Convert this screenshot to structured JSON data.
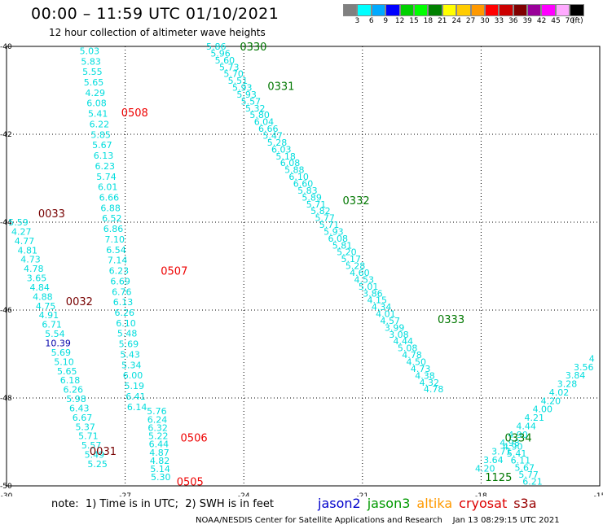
{
  "header": {
    "title": "00:00 – 11:59 UTC 01/10/2021",
    "subtitle": "12 hour collection of altimeter wave heights"
  },
  "colorbar": {
    "labels": [
      "3",
      "6",
      "9",
      "12",
      "15",
      "18",
      "21",
      "24",
      "27",
      "30",
      "33",
      "36",
      "39",
      "42",
      "45",
      "70",
      "(ft)"
    ],
    "colors": [
      "#808080",
      "#00ffff",
      "#00aaff",
      "#0000ff",
      "#00d000",
      "#00ff00",
      "#008000",
      "#ffff00",
      "#ffcc00",
      "#ff9900",
      "#ff0000",
      "#cc0000",
      "#800000",
      "#990099",
      "#ff00ff",
      "#ffaaff",
      "#000000"
    ]
  },
  "footer": {
    "note": "note:  1) Time is in UTC;  2) SWH is in feet",
    "credit": "NOAA/NESDIS Center for Satellite Applications and Research    Jan 13 08:29:15 UTC 2021",
    "legend": [
      {
        "name": "jason2",
        "color": "#0000cc"
      },
      {
        "name": "jason3",
        "color": "#009900"
      },
      {
        "name": "altika",
        "color": "#ff9900"
      },
      {
        "name": "cryosat",
        "color": "#dd0000"
      },
      {
        "name": "s3a",
        "color": "#990000"
      }
    ]
  },
  "chart_data": {
    "type": "scatter",
    "xlim": [
      -30,
      -15
    ],
    "ylim": [
      -50,
      -40
    ],
    "x_ticks": [
      "-30",
      "-27",
      "-24",
      "-21",
      "-18",
      "-15"
    ],
    "y_ticks": [
      "-40",
      "-42",
      "-44",
      "-46",
      "-48",
      "-50"
    ],
    "grid": true,
    "point_color": "#00dddd",
    "tracks": [
      {
        "id": "pass-0033-0032-0031",
        "x0": -29.7,
        "y0": -44.0,
        "x1": -27.7,
        "y1": -49.5,
        "values": [
          "5.59",
          "4.27",
          "4.77",
          "4.81",
          "4.73",
          "4.78",
          "3.65",
          "4.84",
          "4.88",
          "4.75",
          "4.91",
          "6.71",
          "5.54",
          "10.39",
          "5.69",
          "5.10",
          "5.65",
          "6.18",
          "6.26",
          "5.98",
          "6.43",
          "6.67",
          "5.37",
          "5.71",
          "5.57",
          "5.49",
          "5.25"
        ],
        "colors": {
          "13": "#0000aa"
        }
      },
      {
        "id": "pass-0508-0507",
        "x0": -27.9,
        "y0": -40.1,
        "x1": -26.7,
        "y1": -48.2,
        "values": [
          "5.03",
          "5.83",
          "5.55",
          "5.65",
          "4.29",
          "6.08",
          "5.41",
          "6.22",
          "5.85",
          "5.67",
          "6.13",
          "6.23",
          "5.74",
          "6.01",
          "6.66",
          "6.88",
          "6.52",
          "6.86",
          "7.10",
          "6.54",
          "7.14",
          "6.23",
          "6.69",
          "6.76",
          "6.13",
          "6.26",
          "6.10",
          "5.48",
          "5.69",
          "5.43",
          "5.34",
          "6.00",
          "5.19",
          "6.41",
          "6.14"
        ],
        "colors": {}
      },
      {
        "id": "pass-0506-0505",
        "x0": -26.2,
        "y0": -48.3,
        "x1": -26.1,
        "y1": -49.8,
        "values": [
          "5.76",
          "6.24",
          "6.32",
          "5.22",
          "6.44",
          "4.87",
          "4.82",
          "5.14",
          "5.30"
        ],
        "colors": {}
      },
      {
        "id": "pass-0330-0333",
        "x0": -24.7,
        "y0": -40.0,
        "x1": -19.2,
        "y1": -47.8,
        "values": [
          "5.86",
          "5.96",
          "5.60",
          "5.73",
          "5.70",
          "5.51",
          "5.93",
          "5.93",
          "5.57",
          "5.32",
          "5.80",
          "6.04",
          "6.66",
          "5.47",
          "5.28",
          "6.03",
          "5.18",
          "6.08",
          "5.88",
          "6.10",
          "6.60",
          "5.83",
          "5.89",
          "5.71",
          "5.82",
          "5.77",
          "5.71",
          "5.93",
          "6.08",
          "5.81",
          "5.20",
          "5.17",
          "5.28",
          "4.60",
          "4.53",
          "5.01",
          "3.86",
          "4.15",
          "4.34",
          "4.01",
          "4.57",
          "3.99",
          "3.08",
          "4.44",
          "5.08",
          "4.78",
          "4.50",
          "4.73",
          "4.38",
          "4.32",
          "4.78"
        ],
        "colors": {}
      },
      {
        "id": "pass-0334-1125",
        "x0": -17.2,
        "y0": -49.1,
        "x1": -16.7,
        "y1": -49.9,
        "values": [
          "4.90",
          "5.41",
          "6.11",
          "5.67",
          "5.77",
          "6.21"
        ],
        "colors": {}
      },
      {
        "id": "pass-1125-rise",
        "x0": -17.9,
        "y0": -49.6,
        "x1": -15.2,
        "y1": -47.1,
        "values": [
          "4.20",
          "3.64",
          "3.71",
          "4.98",
          "4.90",
          "4.44",
          "4.21",
          "4.00",
          "4.20",
          "4.02",
          "3.28",
          "3.84",
          "3.56",
          "4"
        ],
        "colors": {}
      }
    ],
    "annotations": [
      {
        "text": "0330",
        "x": -24.1,
        "y": -40.0,
        "color": "#007700"
      },
      {
        "text": "0331",
        "x": -23.4,
        "y": -40.9,
        "color": "#007700"
      },
      {
        "text": "0332",
        "x": -21.5,
        "y": -43.5,
        "color": "#007700"
      },
      {
        "text": "0333",
        "x": -19.1,
        "y": -46.2,
        "color": "#007700"
      },
      {
        "text": "0334",
        "x": -17.4,
        "y": -48.9,
        "color": "#007700"
      },
      {
        "text": "1125",
        "x": -17.9,
        "y": -49.8,
        "color": "#007700"
      },
      {
        "text": "0508",
        "x": -27.1,
        "y": -41.5,
        "color": "#ee0000"
      },
      {
        "text": "0507",
        "x": -26.1,
        "y": -45.1,
        "color": "#ee0000"
      },
      {
        "text": "0506",
        "x": -25.6,
        "y": -48.9,
        "color": "#ee0000"
      },
      {
        "text": "0505",
        "x": -25.7,
        "y": -49.9,
        "color": "#ee0000"
      },
      {
        "text": "0033",
        "x": -29.2,
        "y": -43.8,
        "color": "#770000"
      },
      {
        "text": "0032",
        "x": -28.5,
        "y": -45.8,
        "color": "#770000"
      },
      {
        "text": "0031",
        "x": -27.9,
        "y": -49.2,
        "color": "#770000"
      }
    ]
  }
}
